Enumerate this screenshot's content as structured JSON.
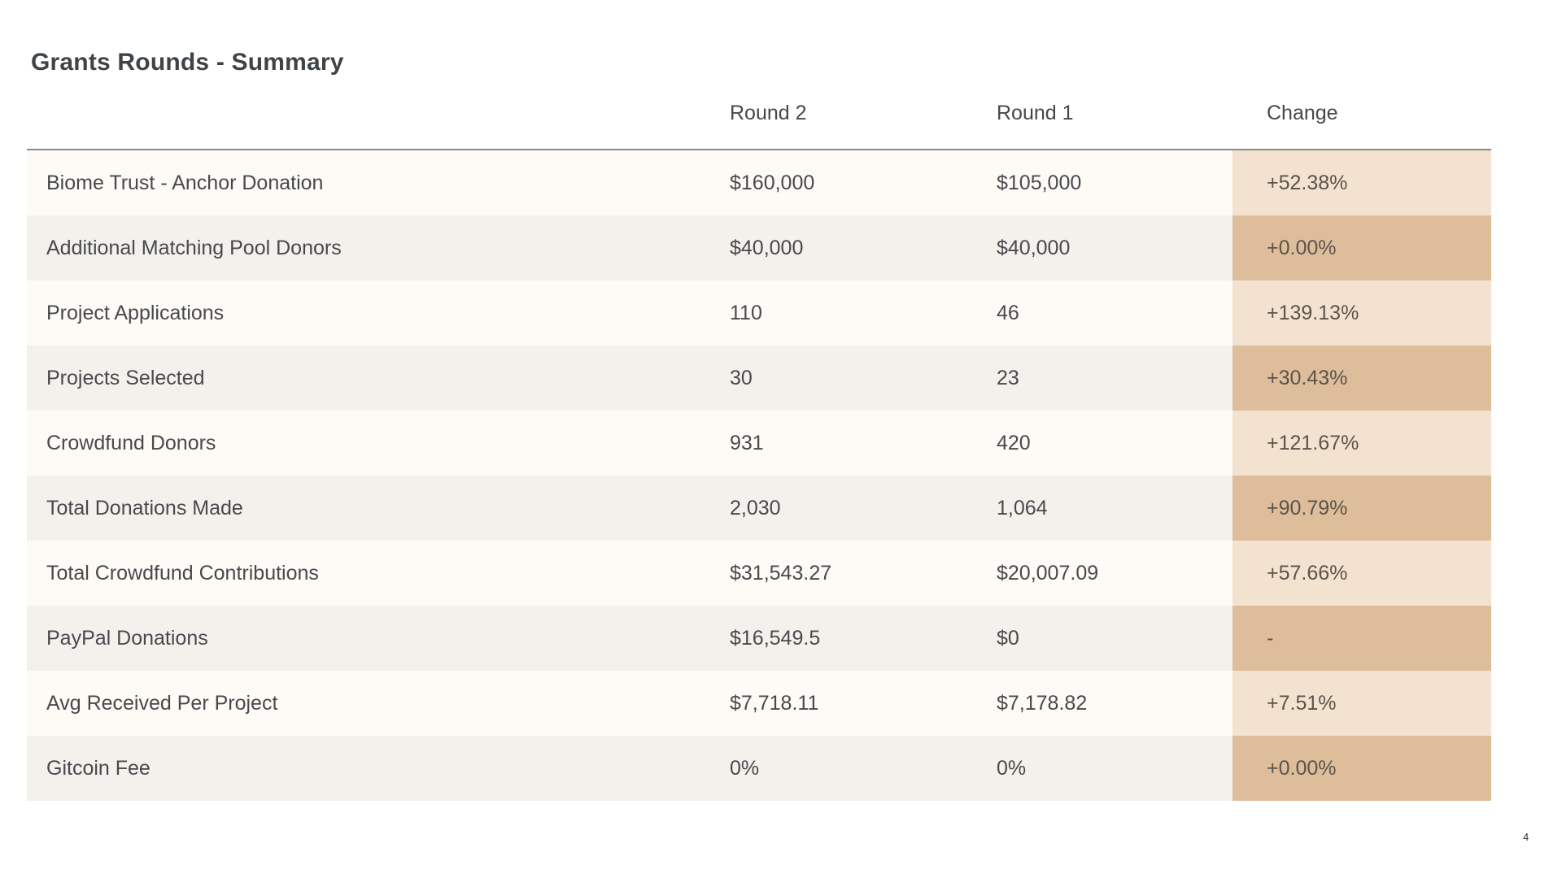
{
  "page": {
    "title": "Grants Rounds - Summary",
    "page_number": "4"
  },
  "colors": {
    "row_odd_bg": "#fefbf6",
    "row_even_bg": "#f4f0ec",
    "change_odd_bg": "#f3e2cf",
    "change_even_bg": "#debd9b",
    "header_rule": "#8a8a8a",
    "title_text": "#3e4347",
    "body_text": "#474a4d",
    "change_text": "#5b544b"
  },
  "table": {
    "columns": {
      "col2": "Round 2",
      "col3": "Round 1",
      "col4": "Change"
    },
    "rows": [
      {
        "label": "Biome Trust - Anchor Donation",
        "round2": "$160,000",
        "round1": "$105,000",
        "change": "+52.38%"
      },
      {
        "label": "Additional Matching Pool Donors",
        "round2": "$40,000",
        "round1": "$40,000",
        "change": "+0.00%"
      },
      {
        "label": "Project Applications",
        "round2": "110",
        "round1": "46",
        "change": "+139.13%"
      },
      {
        "label": "Projects Selected",
        "round2": "30",
        "round1": "23",
        "change": "+30.43%"
      },
      {
        "label": "Crowdfund Donors",
        "round2": "931",
        "round1": "420",
        "change": "+121.67%"
      },
      {
        "label": "Total Donations Made",
        "round2": "2,030",
        "round1": "1,064",
        "change": "+90.79%"
      },
      {
        "label": "Total Crowdfund Contributions",
        "round2": "$31,543.27",
        "round1": "$20,007.09",
        "change": "+57.66%"
      },
      {
        "label": "PayPal Donations",
        "round2": "$16,549.5",
        "round1": "$0",
        "change": "-"
      },
      {
        "label": "Avg Received Per Project",
        "round2": "$7,718.11",
        "round1": "$7,178.82",
        "change": "+7.51%"
      },
      {
        "label": "Gitcoin Fee",
        "round2": "0%",
        "round1": "0%",
        "change": "+0.00%"
      }
    ]
  }
}
